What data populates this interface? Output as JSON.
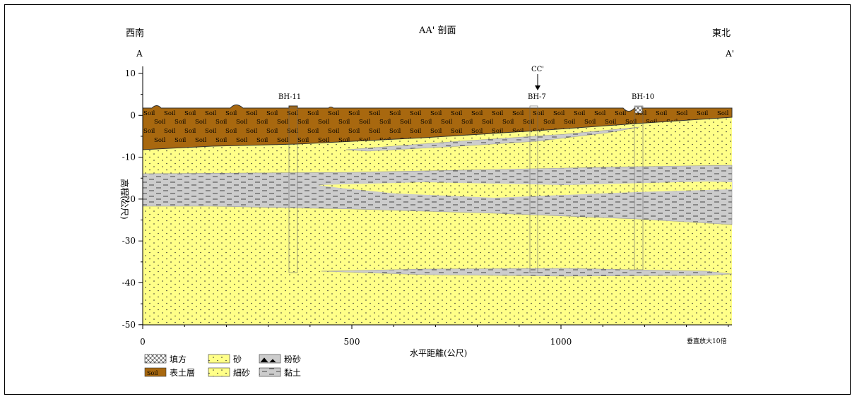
{
  "header": {
    "left_direction": "西南",
    "title": "AA' 剖面",
    "right_direction": "東北",
    "left_point": "A",
    "right_point": "A'"
  },
  "axes": {
    "ylabel": "高程(公尺)",
    "xlabel": "水平距離(公尺)",
    "y_ticks": [
      "10",
      "0",
      "-10",
      "-20",
      "-30",
      "-40",
      "-50"
    ],
    "x_ticks": [
      "0",
      "500",
      "1000"
    ],
    "scale_note": "垂直放大10倍"
  },
  "boreholes": [
    {
      "label": "BH-11"
    },
    {
      "label": "BH-7"
    },
    {
      "label": "BH-10"
    }
  ],
  "section_marker": {
    "label": "CC'"
  },
  "soil_text": "Soil",
  "legend": [
    {
      "key": "fill",
      "label": "填方"
    },
    {
      "key": "sand",
      "label": "砂"
    },
    {
      "key": "silt",
      "label": "粉砂"
    },
    {
      "key": "topsoil",
      "label": "表土層"
    },
    {
      "key": "fine_sand",
      "label": "細砂"
    },
    {
      "key": "clay",
      "label": "黏土"
    }
  ],
  "colors": {
    "topsoil": "#a8680f",
    "sand": "#ffff88",
    "clay": "#cccccc"
  }
}
